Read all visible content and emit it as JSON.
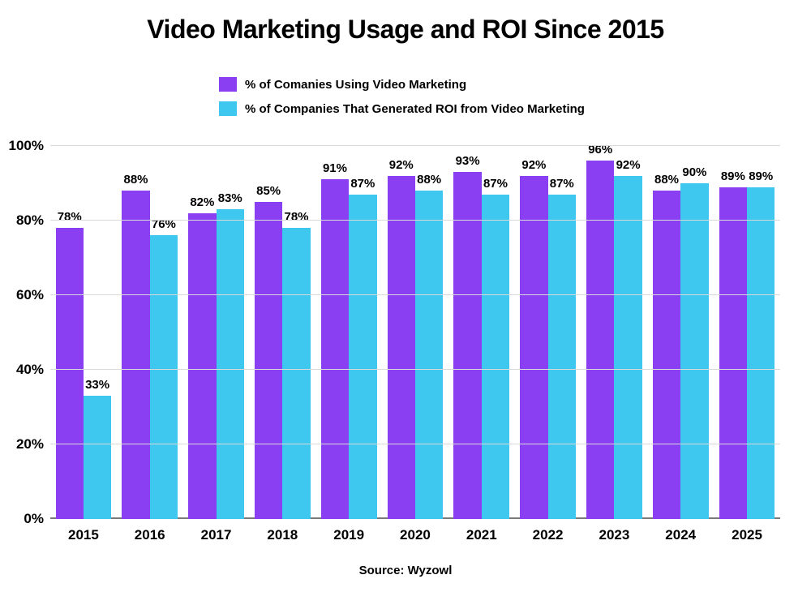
{
  "chart": {
    "type": "bar",
    "title": "Video Marketing Usage and ROI Since 2015",
    "title_fontsize": 32,
    "title_color": "#000000",
    "background_color": "#ffffff",
    "source_text": "Source: Wyzowl",
    "source_fontsize": 15,
    "legend": {
      "position": "top",
      "label_fontsize": 15,
      "items": [
        {
          "label": "% of Comanies Using Video Marketing",
          "color": "#8a3ff2"
        },
        {
          "label": "% of Companies That Generated ROI from Video Marketing",
          "color": "#3ec8f0"
        }
      ]
    },
    "y_axis": {
      "min": 0,
      "max": 100,
      "tick_step": 20,
      "ticks": [
        0,
        20,
        40,
        60,
        80,
        100
      ],
      "tick_suffix": "%",
      "tick_fontsize": 17,
      "grid_color": "#d9d9d9",
      "baseline_color": "#7a7a7a"
    },
    "x_axis": {
      "categories": [
        "2015",
        "2016",
        "2017",
        "2018",
        "2019",
        "2020",
        "2021",
        "2022",
        "2023",
        "2024",
        "2025"
      ],
      "tick_fontsize": 17
    },
    "series": [
      {
        "name": "% of Comanies Using Video Marketing",
        "color": "#8a3ff2",
        "values": [
          78,
          88,
          82,
          85,
          91,
          92,
          93,
          92,
          96,
          88,
          89
        ]
      },
      {
        "name": "% of Companies That Generated ROI from Video Marketing",
        "color": "#3ec8f0",
        "values": [
          33,
          76,
          83,
          78,
          87,
          88,
          87,
          87,
          92,
          90,
          89
        ]
      }
    ],
    "bar": {
      "group_bar_width_pct": 42,
      "value_label_fontsize": 15,
      "value_label_color": "#000000",
      "value_label_suffix": "%"
    }
  }
}
